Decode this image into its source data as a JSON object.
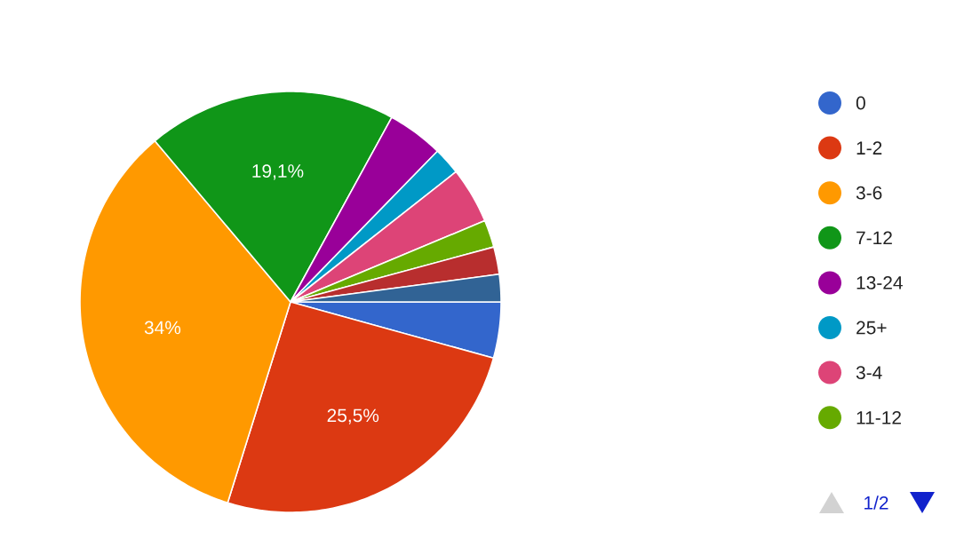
{
  "chart_data": {
    "type": "pie",
    "categories": [
      "0",
      "1-2",
      "3-6",
      "7-12",
      "13-24",
      "25+",
      "3-4",
      "11-12",
      null,
      null
    ],
    "values": [
      4.3,
      25.5,
      34,
      19.1,
      4.3,
      2.1,
      4.3,
      2.1,
      2.1,
      2.1
    ],
    "colors": [
      "#3366cc",
      "#dc3912",
      "#ff9900",
      "#109618",
      "#990099",
      "#0099c6",
      "#dd4477",
      "#66aa00",
      "#b82e2e",
      "#316395"
    ],
    "value_labels": [
      null,
      "25,5%",
      "34%",
      "19,1%",
      null,
      null,
      null,
      null,
      null,
      null
    ],
    "legend": "right",
    "annotations": [
      "1/2"
    ]
  }
}
